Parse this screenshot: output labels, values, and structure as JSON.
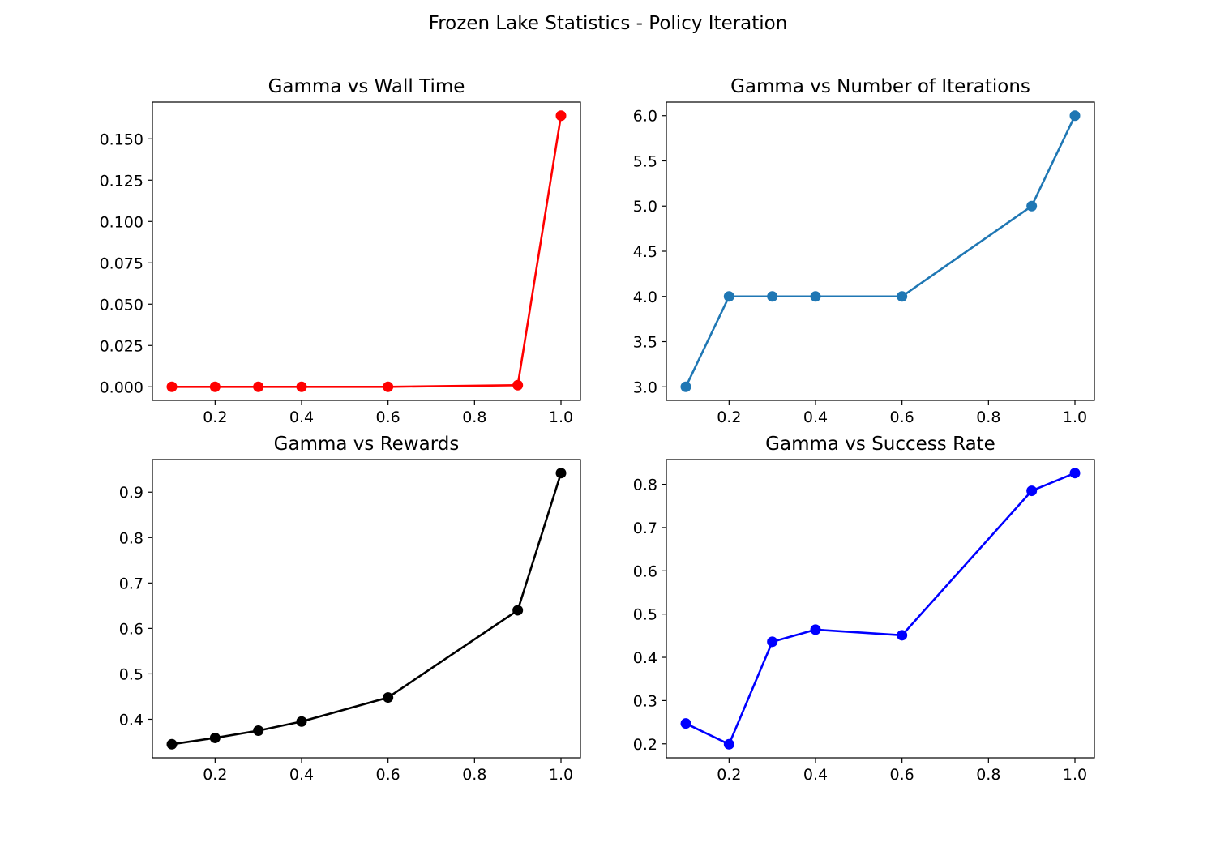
{
  "figure": {
    "suptitle": "Frozen Lake Statistics - Policy Iteration"
  },
  "chart_data": [
    {
      "type": "line",
      "title": "Gamma vs Wall Time",
      "xlabel": "",
      "ylabel": "",
      "x": [
        0.1,
        0.2,
        0.3,
        0.4,
        0.6,
        0.9,
        1.0
      ],
      "series": [
        {
          "values": [
            0.0,
            0.0,
            0.0,
            0.0,
            0.0,
            0.001,
            0.164
          ],
          "color": "#ff0000"
        }
      ],
      "xlim": [
        0.055,
        1.045
      ],
      "ylim": [
        -0.0082,
        0.1722
      ],
      "xticks": [
        0.2,
        0.4,
        0.6,
        0.8,
        1.0
      ],
      "xtick_labels": [
        "0.2",
        "0.4",
        "0.6",
        "0.8",
        "1.0"
      ],
      "yticks": [
        0.0,
        0.025,
        0.05,
        0.075,
        0.1,
        0.125,
        0.15
      ],
      "ytick_labels": [
        "0.000",
        "0.025",
        "0.050",
        "0.075",
        "0.100",
        "0.125",
        "0.150"
      ],
      "marker": "circle",
      "grid": false
    },
    {
      "type": "line",
      "title": "Gamma vs Number of Iterations",
      "xlabel": "",
      "ylabel": "",
      "x": [
        0.1,
        0.2,
        0.3,
        0.4,
        0.6,
        0.9,
        1.0
      ],
      "series": [
        {
          "values": [
            3,
            4,
            4,
            4,
            4,
            5,
            6
          ],
          "color": "#1f77b4"
        }
      ],
      "xlim": [
        0.055,
        1.045
      ],
      "ylim": [
        2.85,
        6.15
      ],
      "xticks": [
        0.2,
        0.4,
        0.6,
        0.8,
        1.0
      ],
      "xtick_labels": [
        "0.2",
        "0.4",
        "0.6",
        "0.8",
        "1.0"
      ],
      "yticks": [
        3.0,
        3.5,
        4.0,
        4.5,
        5.0,
        5.5,
        6.0
      ],
      "ytick_labels": [
        "3.0",
        "3.5",
        "4.0",
        "4.5",
        "5.0",
        "5.5",
        "6.0"
      ],
      "marker": "circle",
      "grid": false
    },
    {
      "type": "line",
      "title": "Gamma vs Rewards",
      "xlabel": "",
      "ylabel": "",
      "x": [
        0.1,
        0.2,
        0.3,
        0.4,
        0.6,
        0.9,
        1.0
      ],
      "series": [
        {
          "values": [
            0.345,
            0.359,
            0.375,
            0.395,
            0.448,
            0.64,
            0.942
          ],
          "color": "#000000"
        }
      ],
      "xlim": [
        0.055,
        1.045
      ],
      "ylim": [
        0.3152,
        0.9718
      ],
      "xticks": [
        0.2,
        0.4,
        0.6,
        0.8,
        1.0
      ],
      "xtick_labels": [
        "0.2",
        "0.4",
        "0.6",
        "0.8",
        "1.0"
      ],
      "yticks": [
        0.4,
        0.5,
        0.6,
        0.7,
        0.8,
        0.9
      ],
      "ytick_labels": [
        "0.4",
        "0.5",
        "0.6",
        "0.7",
        "0.8",
        "0.9"
      ],
      "marker": "circle",
      "grid": false
    },
    {
      "type": "line",
      "title": "Gamma vs Success Rate",
      "xlabel": "",
      "ylabel": "",
      "x": [
        0.1,
        0.2,
        0.3,
        0.4,
        0.6,
        0.9,
        1.0
      ],
      "series": [
        {
          "values": [
            0.247,
            0.199,
            0.436,
            0.464,
            0.451,
            0.785,
            0.826
          ],
          "color": "#0000ff"
        }
      ],
      "xlim": [
        0.055,
        1.045
      ],
      "ylim": [
        0.1677,
        0.8573
      ],
      "xticks": [
        0.2,
        0.4,
        0.6,
        0.8,
        1.0
      ],
      "xtick_labels": [
        "0.2",
        "0.4",
        "0.6",
        "0.8",
        "1.0"
      ],
      "yticks": [
        0.2,
        0.3,
        0.4,
        0.5,
        0.6,
        0.7,
        0.8
      ],
      "ytick_labels": [
        "0.2",
        "0.3",
        "0.4",
        "0.5",
        "0.6",
        "0.7",
        "0.8"
      ],
      "marker": "circle",
      "grid": false
    }
  ]
}
